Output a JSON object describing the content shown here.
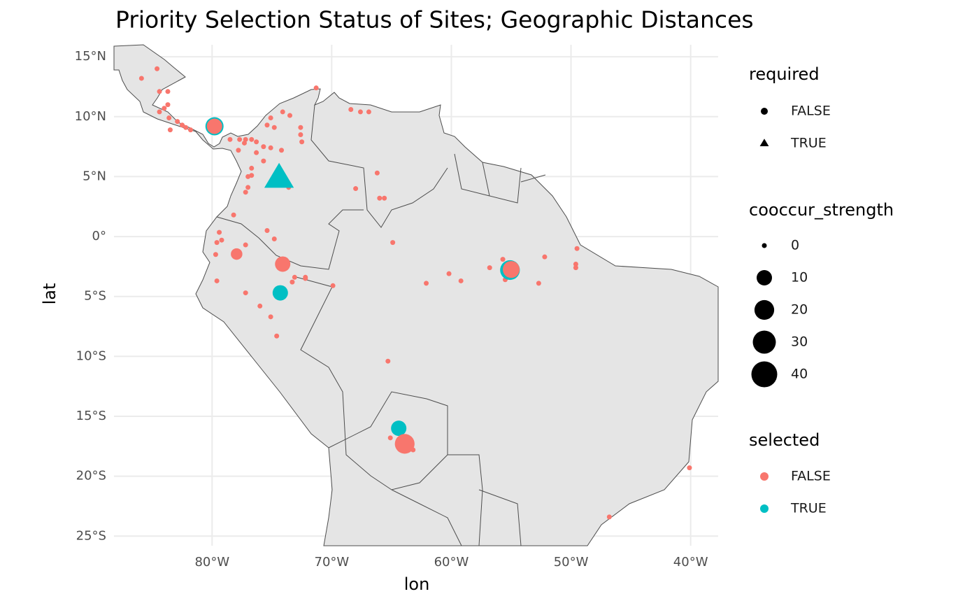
{
  "chart_data": {
    "type": "scatter",
    "title": "Priority Selection Status of Sites; Geographic Distances",
    "x_label": "lon",
    "y_label": "lat",
    "xlim": [
      -88.2,
      -37.7
    ],
    "ylim": [
      -25.8,
      16
    ],
    "xticks": [
      {
        "value": -80,
        "label": "80°W"
      },
      {
        "value": -70,
        "label": "70°W"
      },
      {
        "value": -60,
        "label": "60°W"
      },
      {
        "value": -50,
        "label": "50°W"
      },
      {
        "value": -40,
        "label": "40°W"
      }
    ],
    "yticks": [
      {
        "value": 15,
        "label": "15°N"
      },
      {
        "value": 10,
        "label": "10°N"
      },
      {
        "value": 5,
        "label": "5°N"
      },
      {
        "value": 0,
        "label": "0°"
      },
      {
        "value": -5,
        "label": "5°S"
      },
      {
        "value": -10,
        "label": "10°S"
      },
      {
        "value": -15,
        "label": "15°S"
      },
      {
        "value": -20,
        "label": "20°S"
      },
      {
        "value": -25,
        "label": "25°S"
      }
    ],
    "grid": true,
    "x": [
      -85.9,
      -84.6,
      -84.4,
      -83.7,
      -83.7,
      -84.0,
      -84.4,
      -83.6,
      -83.5,
      -82.9,
      -82.5,
      -82.2,
      -81.8,
      -78.5,
      -77.7,
      -77.3,
      -77.2,
      -76.7,
      -76.3,
      -77.8,
      -76.3,
      -75.7,
      -75.7,
      -75.1,
      -75.4,
      -75.1,
      -74.8,
      -74.1,
      -73.5,
      -72.6,
      -72.6,
      -72.5,
      -74.2,
      -71.3,
      -68.4,
      -67.6,
      -66.9,
      -76.7,
      -77.0,
      -76.7,
      -77.0,
      -77.2,
      -73.6,
      -78.2,
      -68.0,
      -66.2,
      -66.0,
      -65.6,
      -79.4,
      -79.2,
      -79.6,
      -79.7,
      -77.2,
      -75.4,
      -74.8,
      -79.6,
      -77.2,
      -76.0,
      -75.1,
      -74.6,
      -74.3,
      -73.3,
      -73.1,
      -72.2,
      -72.2,
      -69.9,
      -64.9,
      -62.1,
      -60.2,
      -59.2,
      -56.8,
      -55.7,
      -55.5,
      -52.2,
      -52.7,
      -49.5,
      -49.6,
      -49.6,
      -65.3,
      -65.1,
      -63.2,
      -46.8,
      -40.1,
      -77.95,
      -74.1,
      -74.3,
      -79.8,
      -79.8,
      -74.4,
      -55.1,
      -55.0,
      -64.4,
      -63.9
    ],
    "y": [
      13.2,
      14.0,
      12.1,
      12.1,
      11.0,
      10.7,
      10.4,
      9.9,
      8.9,
      9.6,
      9.3,
      9.1,
      8.9,
      8.1,
      8.1,
      7.8,
      8.1,
      8.1,
      7.9,
      7.2,
      7.0,
      7.5,
      6.3,
      7.4,
      9.3,
      9.9,
      9.1,
      10.4,
      10.1,
      9.1,
      8.5,
      7.9,
      7.2,
      12.4,
      10.6,
      10.4,
      10.4,
      5.7,
      5.0,
      5.1,
      4.1,
      3.7,
      4.1,
      1.8,
      4.0,
      5.3,
      3.2,
      3.2,
      0.35,
      -0.3,
      -0.5,
      -1.5,
      -0.7,
      0.5,
      -0.2,
      -3.7,
      -4.7,
      -5.8,
      -6.7,
      -8.3,
      -4.8,
      -3.8,
      -3.4,
      -3.4,
      -3.5,
      -4.1,
      -0.5,
      -3.9,
      -3.1,
      -3.7,
      -2.6,
      -1.9,
      -3.6,
      -1.7,
      -3.9,
      -1.0,
      -2.3,
      -2.6,
      -10.4,
      -16.8,
      -17.8,
      -23.4,
      -19.3,
      -1.46,
      -2.3,
      -4.7,
      9.2,
      9.2,
      4.85,
      -2.8,
      -2.75,
      -16.0,
      -17.3
    ],
    "size": [
      0,
      0,
      0,
      0,
      0,
      0,
      0,
      0,
      0,
      0,
      0,
      0,
      0,
      0,
      0,
      0,
      0,
      0,
      0,
      0,
      0,
      0,
      0,
      0,
      0,
      0,
      0,
      0,
      0,
      0,
      0,
      0,
      0,
      0,
      0,
      0,
      0,
      0,
      0,
      0,
      0,
      0,
      0,
      0,
      0,
      0,
      0,
      0,
      0,
      0,
      0,
      0,
      0,
      0,
      0,
      0,
      0,
      0,
      0,
      0,
      0,
      0,
      0,
      0,
      0,
      0,
      0,
      0,
      0,
      0,
      0,
      0,
      0,
      0,
      0,
      0,
      0,
      0,
      0,
      0,
      0,
      0,
      0,
      4,
      10,
      10,
      16,
      10,
      30,
      20,
      13,
      10,
      20
    ],
    "selected": [
      "FALSE",
      "FALSE",
      "FALSE",
      "FALSE",
      "FALSE",
      "FALSE",
      "FALSE",
      "FALSE",
      "FALSE",
      "FALSE",
      "FALSE",
      "FALSE",
      "FALSE",
      "FALSE",
      "FALSE",
      "FALSE",
      "FALSE",
      "FALSE",
      "FALSE",
      "FALSE",
      "FALSE",
      "FALSE",
      "FALSE",
      "FALSE",
      "FALSE",
      "FALSE",
      "FALSE",
      "FALSE",
      "FALSE",
      "FALSE",
      "FALSE",
      "FALSE",
      "FALSE",
      "FALSE",
      "FALSE",
      "FALSE",
      "FALSE",
      "FALSE",
      "FALSE",
      "FALSE",
      "FALSE",
      "FALSE",
      "FALSE",
      "FALSE",
      "FALSE",
      "FALSE",
      "FALSE",
      "FALSE",
      "FALSE",
      "FALSE",
      "FALSE",
      "FALSE",
      "FALSE",
      "FALSE",
      "FALSE",
      "FALSE",
      "FALSE",
      "FALSE",
      "FALSE",
      "FALSE",
      "FALSE",
      "FALSE",
      "FALSE",
      "FALSE",
      "FALSE",
      "FALSE",
      "FALSE",
      "FALSE",
      "FALSE",
      "FALSE",
      "FALSE",
      "FALSE",
      "FALSE",
      "FALSE",
      "FALSE",
      "FALSE",
      "FALSE",
      "FALSE",
      "FALSE",
      "FALSE",
      "FALSE",
      "FALSE",
      "FALSE",
      "FALSE",
      "FALSE",
      "TRUE",
      "TRUE",
      "FALSE",
      "TRUE",
      "TRUE",
      "FALSE",
      "TRUE",
      "FALSE"
    ],
    "required": [
      "FALSE",
      "FALSE",
      "FALSE",
      "FALSE",
      "FALSE",
      "FALSE",
      "FALSE",
      "FALSE",
      "FALSE",
      "FALSE",
      "FALSE",
      "FALSE",
      "FALSE",
      "FALSE",
      "FALSE",
      "FALSE",
      "FALSE",
      "FALSE",
      "FALSE",
      "FALSE",
      "FALSE",
      "FALSE",
      "FALSE",
      "FALSE",
      "FALSE",
      "FALSE",
      "FALSE",
      "FALSE",
      "FALSE",
      "FALSE",
      "FALSE",
      "FALSE",
      "FALSE",
      "FALSE",
      "FALSE",
      "FALSE",
      "FALSE",
      "FALSE",
      "FALSE",
      "FALSE",
      "FALSE",
      "FALSE",
      "FALSE",
      "FALSE",
      "FALSE",
      "FALSE",
      "FALSE",
      "FALSE",
      "FALSE",
      "FALSE",
      "FALSE",
      "FALSE",
      "FALSE",
      "FALSE",
      "FALSE",
      "FALSE",
      "FALSE",
      "FALSE",
      "FALSE",
      "FALSE",
      "FALSE",
      "FALSE",
      "FALSE",
      "FALSE",
      "FALSE",
      "FALSE",
      "FALSE",
      "FALSE",
      "FALSE",
      "FALSE",
      "FALSE",
      "FALSE",
      "FALSE",
      "FALSE",
      "FALSE",
      "FALSE",
      "FALSE",
      "FALSE",
      "FALSE",
      "FALSE",
      "FALSE",
      "FALSE",
      "FALSE",
      "FALSE",
      "FALSE",
      "FALSE",
      "FALSE",
      "FALSE",
      "TRUE",
      "FALSE",
      "FALSE",
      "FALSE",
      "FALSE"
    ],
    "legend_required": {
      "title": "required",
      "entries": [
        {
          "label": "FALSE",
          "shape": "circle"
        },
        {
          "label": "TRUE",
          "shape": "triangle"
        }
      ]
    },
    "legend_size": {
      "title": "cooccur_strength",
      "values": [
        0,
        10,
        20,
        30,
        40
      ]
    },
    "legend_selected": {
      "title": "selected",
      "entries": [
        {
          "label": "FALSE",
          "color": "#F8766D"
        },
        {
          "label": "TRUE",
          "color": "#00BFC4"
        }
      ]
    }
  }
}
